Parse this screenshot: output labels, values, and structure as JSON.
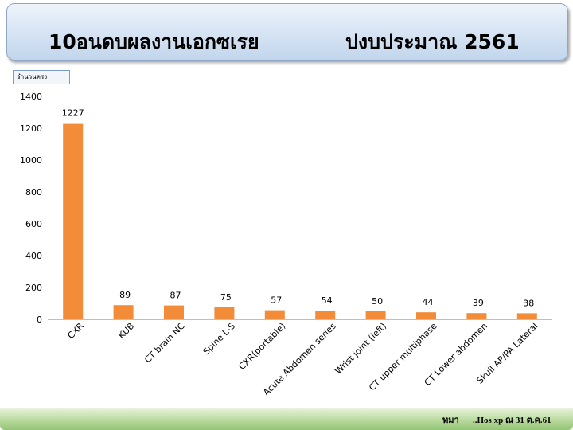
{
  "slide": {
    "title_left": "10อนดบผลงานเอกซเรย",
    "title_right": "ปงบประมาณ  2561",
    "y_unit_label": "จำนวนครง",
    "footer_left": "ทมา",
    "footer_right": "..Hos xp ณ 31 ต.ค.61"
  },
  "chart_data": {
    "type": "bar",
    "categories": [
      "CXR",
      "KUB",
      "CT brain NC",
      "Spine L-S",
      "CXR(portable)",
      "Acute Abdomen series",
      "Wrist joint (left)",
      "CT upper multiphase",
      "CT Lower abdomen",
      "Skull AP/PA Lateral"
    ],
    "values": [
      1227,
      89,
      87,
      75,
      57,
      54,
      50,
      44,
      39,
      38
    ],
    "y_ticks": [
      0,
      200,
      400,
      600,
      800,
      1000,
      1200,
      1400
    ],
    "ylim": [
      0,
      1400
    ],
    "bar_color": "#f28c38",
    "grid": false,
    "legend": "none"
  }
}
